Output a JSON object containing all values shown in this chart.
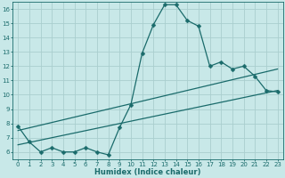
{
  "xlabel": "Humidex (Indice chaleur)",
  "bg_color": "#c8e8e8",
  "grid_color": "#aacece",
  "line_color": "#1a6b6b",
  "xlim": [
    -0.5,
    23.5
  ],
  "ylim": [
    5.5,
    16.5
  ],
  "xticks": [
    0,
    1,
    2,
    3,
    4,
    5,
    6,
    7,
    8,
    9,
    10,
    11,
    12,
    13,
    14,
    15,
    16,
    17,
    18,
    19,
    20,
    21,
    22,
    23
  ],
  "yticks": [
    6,
    7,
    8,
    9,
    10,
    11,
    12,
    13,
    14,
    15,
    16
  ],
  "line1_x": [
    0,
    1,
    2,
    3,
    4,
    5,
    6,
    7,
    8,
    9,
    10,
    11,
    12,
    13,
    14,
    15,
    16,
    17,
    18,
    19,
    20,
    21,
    22,
    23
  ],
  "line1_y": [
    7.8,
    6.7,
    6.0,
    6.3,
    6.0,
    6.0,
    6.3,
    6.0,
    5.8,
    7.7,
    9.3,
    12.9,
    14.9,
    16.3,
    16.3,
    15.2,
    14.8,
    12.0,
    12.3,
    11.8,
    12.0,
    11.3,
    10.3,
    10.2
  ],
  "line2_x": [
    0,
    23
  ],
  "line2_y": [
    6.5,
    10.3
  ],
  "line3_x": [
    0,
    23
  ],
  "line3_y": [
    7.5,
    11.8
  ],
  "markersize": 2.5,
  "linewidth": 0.9,
  "tick_fontsize": 5.0,
  "xlabel_fontsize": 6.0
}
